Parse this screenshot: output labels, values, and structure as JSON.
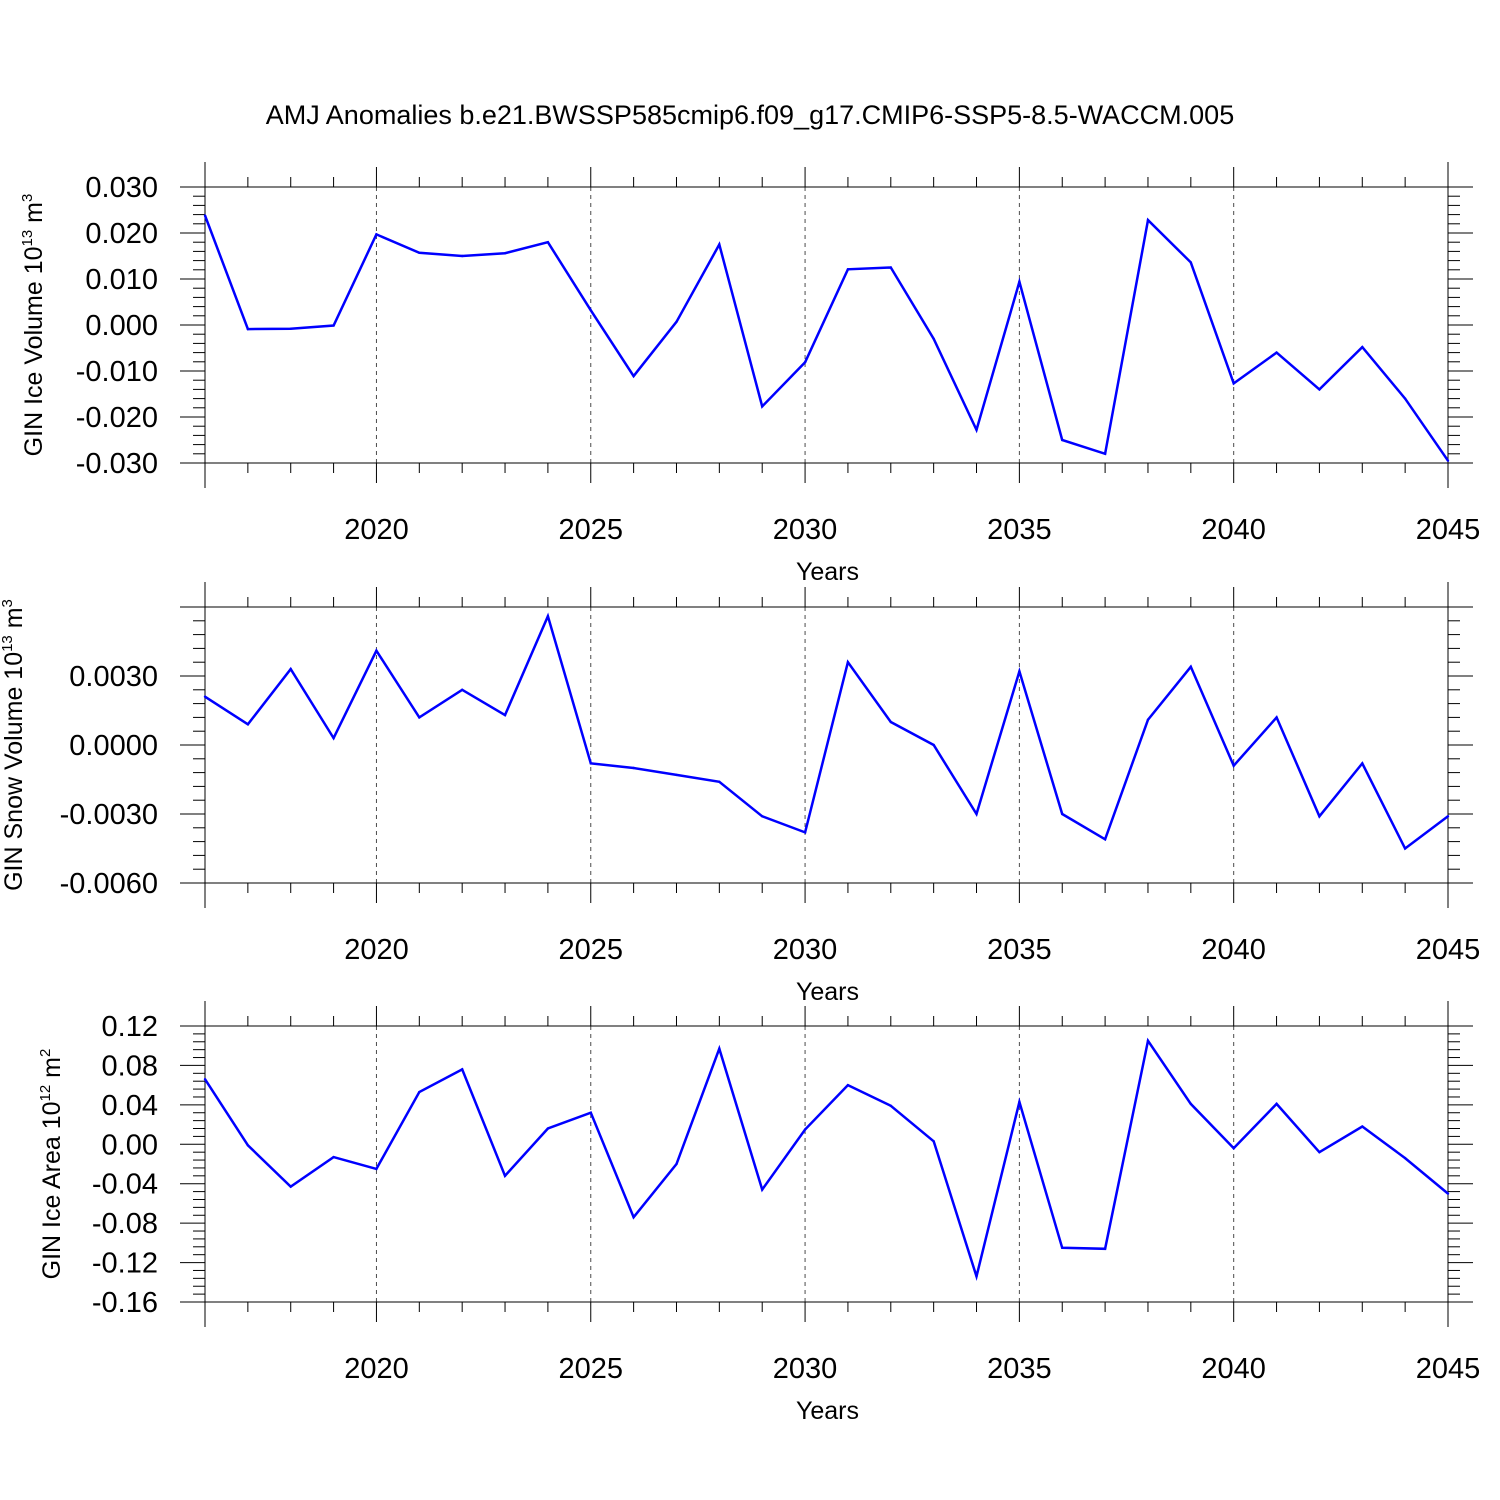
{
  "title": "AMJ Anomalies b.e21.BWSSP585cmip6.f09_g17.CMIP6-SSP5-8.5-WACCM.005",
  "colors": {
    "line": "#0000ff",
    "axes": "#000000",
    "grid": "#000000"
  },
  "chart_data": [
    {
      "type": "line",
      "title": "",
      "xlabel": "Years",
      "ylabel": {
        "text": "GIN Ice Volume 10",
        "sup": "13",
        "unit": " m",
        "unit_sup": "3"
      },
      "xlim": [
        2016,
        2045
      ],
      "ylim": [
        -0.03,
        0.03
      ],
      "xticks": [
        2020,
        2025,
        2030,
        2035,
        2040,
        2045
      ],
      "xtick_labels": [
        "2020",
        "2025",
        "2030",
        "2035",
        "2040",
        "2045"
      ],
      "yticks": [
        0.03,
        0.02,
        0.01,
        0.0,
        -0.01,
        -0.02,
        -0.03
      ],
      "ytick_labels": [
        "0.030",
        "0.020",
        "0.010",
        "0.000",
        "-0.010",
        "-0.020",
        "-0.030"
      ],
      "grid": "vertical dashed at x ticks",
      "x": [
        2016,
        2017,
        2018,
        2019,
        2020,
        2021,
        2022,
        2023,
        2024,
        2025,
        2026,
        2027,
        2028,
        2029,
        2030,
        2031,
        2032,
        2033,
        2034,
        2035,
        2036,
        2037,
        2038,
        2039,
        2040,
        2041,
        2042,
        2043,
        2044,
        2045
      ],
      "series": [
        {
          "values": [
            0.0238,
            -0.0009,
            -0.0008,
            -0.0001,
            0.0197,
            0.0157,
            0.015,
            0.0156,
            0.018,
            0.0032,
            -0.0111,
            0.0007,
            0.0175,
            -0.0177,
            -0.0081,
            0.0121,
            0.0125,
            -0.003,
            -0.0228,
            0.0094,
            -0.025,
            -0.028,
            0.0228,
            0.0136,
            -0.0127,
            -0.006,
            -0.014,
            -0.0048,
            -0.016,
            -0.0295
          ]
        }
      ]
    },
    {
      "type": "line",
      "title": "",
      "xlabel": "Years",
      "ylabel": {
        "text": "GIN Snow Volume 10",
        "sup": "13",
        "unit": " m",
        "unit_sup": "3"
      },
      "xlim": [
        2016,
        2045
      ],
      "ylim": [
        -0.006,
        0.006
      ],
      "xticks": [
        2020,
        2025,
        2030,
        2035,
        2040,
        2045
      ],
      "xtick_labels": [
        "2020",
        "2025",
        "2030",
        "2035",
        "2040",
        "2045"
      ],
      "yticks": [
        0.003,
        0.0,
        -0.003,
        -0.006
      ],
      "ytick_labels": [
        "0.0030",
        "0.0000",
        "-0.0030",
        "-0.0060"
      ],
      "grid": "vertical dashed at x ticks",
      "x": [
        2016,
        2017,
        2018,
        2019,
        2020,
        2021,
        2022,
        2023,
        2024,
        2025,
        2026,
        2027,
        2028,
        2029,
        2030,
        2031,
        2032,
        2033,
        2034,
        2035,
        2036,
        2037,
        2038,
        2039,
        2040,
        2041,
        2042,
        2043,
        2044,
        2045
      ],
      "series": [
        {
          "values": [
            0.0021,
            0.0009,
            0.0033,
            0.0003,
            0.0041,
            0.0012,
            0.0024,
            0.0013,
            0.0056,
            -0.0008,
            -0.001,
            -0.0013,
            -0.0016,
            -0.0031,
            -0.0038,
            0.0036,
            0.001,
            0.0,
            -0.003,
            0.0032,
            -0.003,
            -0.0041,
            0.0011,
            0.0034,
            -0.0009,
            0.0012,
            -0.0031,
            -0.0008,
            -0.0045,
            -0.0031
          ]
        }
      ]
    },
    {
      "type": "line",
      "title": "",
      "xlabel": "Years",
      "ylabel": {
        "text": "GIN Ice Area 10",
        "sup": "12",
        "unit": " m",
        "unit_sup": "2"
      },
      "xlim": [
        2016,
        2045
      ],
      "ylim": [
        -0.16,
        0.12
      ],
      "xticks": [
        2020,
        2025,
        2030,
        2035,
        2040,
        2045
      ],
      "xtick_labels": [
        "2020",
        "2025",
        "2030",
        "2035",
        "2040",
        "2045"
      ],
      "yticks": [
        0.12,
        0.08,
        0.04,
        0.0,
        -0.04,
        -0.08,
        -0.12,
        -0.16
      ],
      "ytick_labels": [
        "0.12",
        "0.08",
        "0.04",
        "0.00",
        "-0.04",
        "-0.08",
        "-0.12",
        "-0.16"
      ],
      "grid": "vertical dashed at x ticks",
      "x": [
        2016,
        2017,
        2018,
        2019,
        2020,
        2021,
        2022,
        2023,
        2024,
        2025,
        2026,
        2027,
        2028,
        2029,
        2030,
        2031,
        2032,
        2033,
        2034,
        2035,
        2036,
        2037,
        2038,
        2039,
        2040,
        2041,
        2042,
        2043,
        2044,
        2045
      ],
      "series": [
        {
          "values": [
            0.066,
            -0.001,
            -0.043,
            -0.013,
            -0.025,
            0.053,
            0.076,
            -0.032,
            0.016,
            0.032,
            -0.074,
            -0.02,
            0.097,
            -0.046,
            0.015,
            0.06,
            0.039,
            0.003,
            -0.134,
            0.043,
            -0.105,
            -0.106,
            0.105,
            0.041,
            -0.004,
            0.041,
            -0.008,
            0.018,
            -0.014,
            -0.05
          ]
        }
      ]
    }
  ]
}
